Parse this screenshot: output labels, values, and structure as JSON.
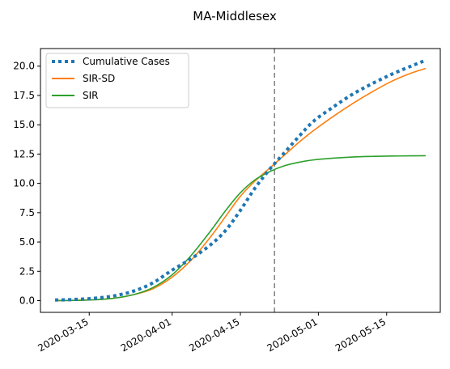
{
  "chart_data": {
    "type": "line",
    "title": "MA-Middlesex",
    "xlabel": "",
    "ylabel": "",
    "xlim": [
      "2020-03-05",
      "2020-05-26"
    ],
    "ylim": [
      -1.0,
      21.5
    ],
    "x_ticks": [
      "2020-03-15",
      "2020-04-01",
      "2020-04-15",
      "2020-05-01",
      "2020-05-15"
    ],
    "y_ticks": [
      "0.0",
      "2.5",
      "5.0",
      "7.5",
      "10.0",
      "12.5",
      "15.0",
      "17.5",
      "20.0"
    ],
    "vline": {
      "x": "2020-04-22",
      "style": "dashed",
      "color": "#7f7f7f"
    },
    "grid": false,
    "legend_position": "top-left",
    "series": [
      {
        "name": "Cumulative Cases",
        "style": "dotted",
        "color": "#1f77b4",
        "x": [
          "2020-03-08",
          "2020-03-12",
          "2020-03-16",
          "2020-03-20",
          "2020-03-24",
          "2020-03-28",
          "2020-04-01",
          "2020-04-05",
          "2020-04-09",
          "2020-04-12",
          "2020-04-15",
          "2020-04-18",
          "2020-04-21",
          "2020-04-24",
          "2020-04-27",
          "2020-04-30",
          "2020-05-04",
          "2020-05-08",
          "2020-05-12",
          "2020-05-16",
          "2020-05-20",
          "2020-05-23"
        ],
        "y": [
          0.05,
          0.1,
          0.2,
          0.4,
          0.8,
          1.5,
          2.6,
          3.6,
          4.8,
          6.0,
          7.7,
          9.6,
          11.2,
          12.6,
          14.0,
          15.3,
          16.5,
          17.6,
          18.5,
          19.3,
          20.0,
          20.5
        ]
      },
      {
        "name": "SIR-SD",
        "style": "solid",
        "color": "#ff7f0e",
        "x": [
          "2020-03-08",
          "2020-03-12",
          "2020-03-16",
          "2020-03-20",
          "2020-03-24",
          "2020-03-28",
          "2020-04-01",
          "2020-04-05",
          "2020-04-09",
          "2020-04-12",
          "2020-04-15",
          "2020-04-18",
          "2020-04-21",
          "2020-04-24",
          "2020-04-27",
          "2020-04-30",
          "2020-05-04",
          "2020-05-08",
          "2020-05-12",
          "2020-05-16",
          "2020-05-20",
          "2020-05-23"
        ],
        "y": [
          0.0,
          0.02,
          0.08,
          0.2,
          0.5,
          1.0,
          2.0,
          3.5,
          5.5,
          7.2,
          8.9,
          10.2,
          11.3,
          12.4,
          13.5,
          14.5,
          15.7,
          16.8,
          17.8,
          18.7,
          19.4,
          19.8
        ]
      },
      {
        "name": "SIR",
        "style": "solid",
        "color": "#2ca02c",
        "x": [
          "2020-03-08",
          "2020-03-12",
          "2020-03-16",
          "2020-03-20",
          "2020-03-24",
          "2020-03-28",
          "2020-04-01",
          "2020-04-05",
          "2020-04-09",
          "2020-04-12",
          "2020-04-15",
          "2020-04-18",
          "2020-04-21",
          "2020-04-24",
          "2020-04-27",
          "2020-04-30",
          "2020-05-04",
          "2020-05-08",
          "2020-05-12",
          "2020-05-16",
          "2020-05-20",
          "2020-05-23"
        ],
        "y": [
          0.0,
          0.02,
          0.07,
          0.2,
          0.5,
          1.1,
          2.2,
          3.9,
          6.0,
          7.7,
          9.2,
          10.3,
          11.0,
          11.5,
          11.8,
          12.0,
          12.15,
          12.25,
          12.3,
          12.33,
          12.35,
          12.36
        ]
      }
    ]
  }
}
